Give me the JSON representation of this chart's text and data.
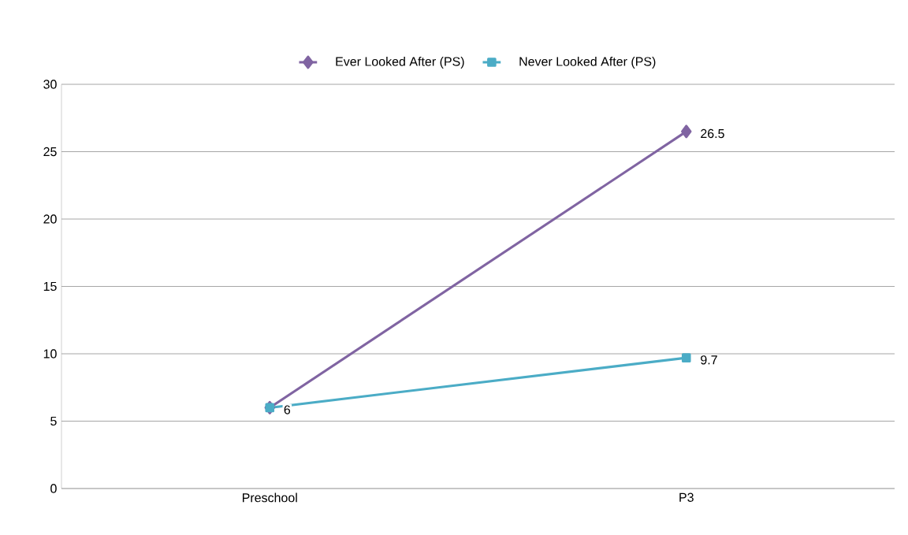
{
  "chart_data": {
    "type": "line",
    "categories": [
      "Preschool",
      "P3"
    ],
    "series": [
      {
        "name": "Ever Looked After (PS)",
        "color": "#8064a2",
        "marker": "diamond",
        "values": [
          6,
          26.5
        ],
        "value_labels": [
          null,
          "26.5"
        ]
      },
      {
        "name": "Never Looked After (PS)",
        "color": "#4bacc6",
        "marker": "square",
        "values": [
          6,
          9.7
        ],
        "value_labels": [
          "6",
          "9.7"
        ]
      }
    ],
    "ylim": [
      0,
      30
    ],
    "yticks": [
      0,
      5,
      10,
      15,
      20,
      25,
      30
    ],
    "grid": "y",
    "legend": "top",
    "line_style": "solid"
  }
}
